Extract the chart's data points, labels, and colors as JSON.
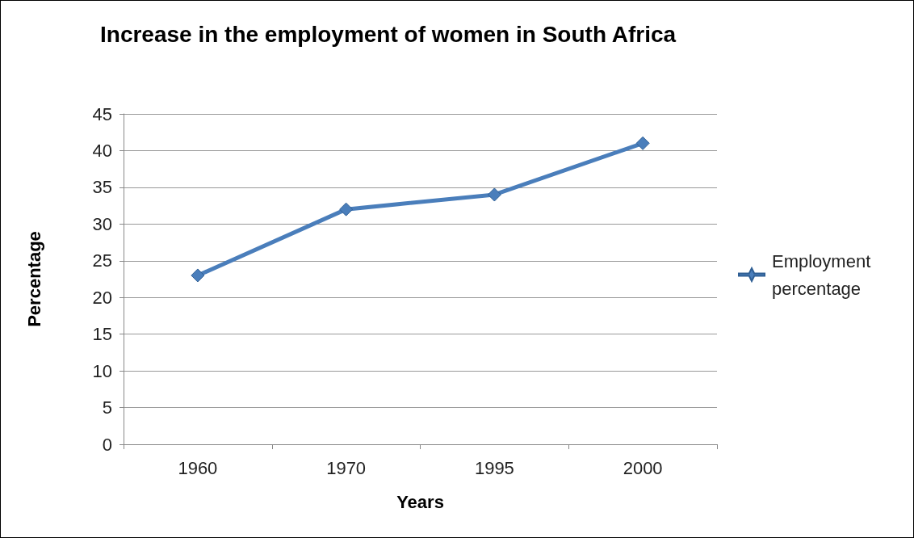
{
  "chart_data": {
    "type": "line",
    "title": "Increase in the employment of women in South Africa",
    "xlabel": "Years",
    "ylabel": "Percentage",
    "categories": [
      "1960",
      "1970",
      "1995",
      "2000"
    ],
    "series": [
      {
        "name": "Employment percentage",
        "color": "#4a7ebb",
        "values": [
          23,
          32,
          34,
          41
        ]
      }
    ],
    "ylim": [
      0,
      45
    ],
    "yticks": [
      0,
      5,
      10,
      15,
      20,
      25,
      30,
      35,
      40,
      45
    ],
    "grid": "y",
    "legend": "right",
    "marker": "diamond",
    "line_style": "solid"
  }
}
